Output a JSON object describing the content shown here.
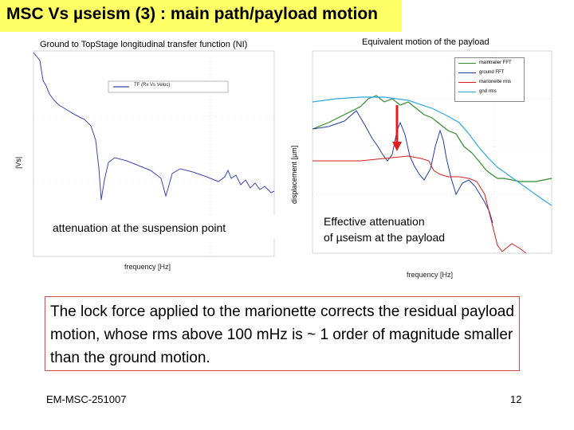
{
  "slide": {
    "title": "MSC Vs µseism (3) : main path/payload motion",
    "caption": "The lock force applied to the marionette corrects the residual payload motion, whose rms above 100 mHz is ~ 1 order of magnitude smaller than the ground motion.",
    "footer_left": "EM-MSC-251007",
    "page_number": "12"
  },
  "left_plot": {
    "title": "Ground to TopStage longitudinal transfer function (NI)",
    "ylabel": "|Vs|",
    "xlabel": "frequency [Hz]",
    "legend": "TF (Rx Vs Veloc)",
    "annotation": "attenuation at the suspension point",
    "line_color": "#3b46b0"
  },
  "right_plot": {
    "title": "Equivalent motion of the payload",
    "ylabel": "displacement [µm]",
    "xlabel": "frequency [Hz]",
    "legend": [
      {
        "label": "maintrailer FFT",
        "color": "#2e8b2e"
      },
      {
        "label": "ground FFT",
        "color": "#1f3fa0"
      },
      {
        "label": "marionette rms",
        "color": "#d22020"
      },
      {
        "label": "gnd rms",
        "color": "#2fa8e0"
      }
    ],
    "annotation_line1": "Effective attenuation",
    "annotation_line2": "of µseism at the payload",
    "arrow_color": "#e02020"
  }
}
